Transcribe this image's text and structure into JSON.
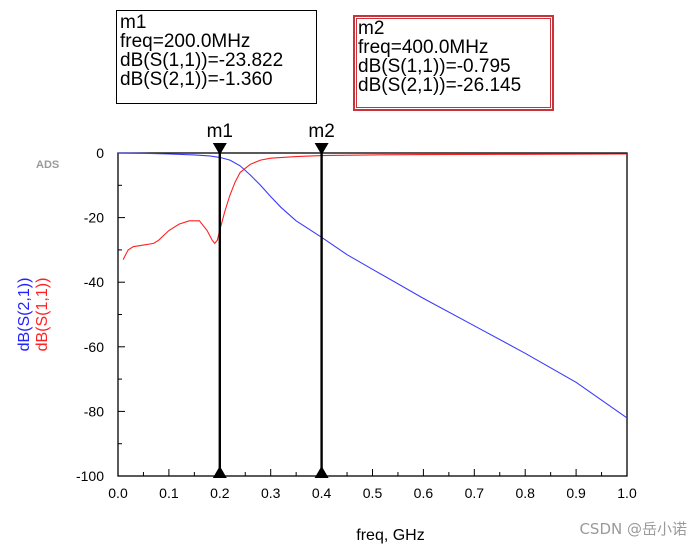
{
  "chart_data": {
    "type": "line",
    "app_label": "ADS",
    "xlabel": "freq, GHz",
    "ylabels": [
      {
        "text": "dB(S(2,1))",
        "color": "#2222ff"
      },
      {
        "text": "dB(S(1,1))",
        "color": "#ff2222"
      }
    ],
    "xlim": [
      0.0,
      1.0
    ],
    "ylim": [
      -100,
      0
    ],
    "xticks": [
      "0.0",
      "0.1",
      "0.2",
      "0.3",
      "0.4",
      "0.5",
      "0.6",
      "0.7",
      "0.8",
      "0.9",
      "1.0"
    ],
    "yticks": [
      "0",
      "-20",
      "-40",
      "-60",
      "-80",
      "-100"
    ],
    "series": [
      {
        "name": "dB(S(2,1))",
        "color": "#3a3aff",
        "x": [
          0.0,
          0.05,
          0.1,
          0.15,
          0.18,
          0.2,
          0.22,
          0.24,
          0.26,
          0.28,
          0.3,
          0.32,
          0.35,
          0.4,
          0.45,
          0.5,
          0.6,
          0.7,
          0.8,
          0.9,
          1.0
        ],
        "y": [
          0.0,
          -0.1,
          -0.3,
          -0.6,
          -0.9,
          -1.36,
          -2.2,
          -4.0,
          -6.8,
          -10.0,
          -13.5,
          -16.8,
          -21.0,
          -26.1,
          -31.5,
          -36.0,
          -45.0,
          -53.5,
          -62.0,
          -71.0,
          -82.0
        ]
      },
      {
        "name": "dB(S(1,1))",
        "color": "#ff2020",
        "x": [
          0.01,
          0.015,
          0.02,
          0.03,
          0.05,
          0.07,
          0.08,
          0.1,
          0.12,
          0.14,
          0.16,
          0.175,
          0.185,
          0.19,
          0.195,
          0.2,
          0.205,
          0.21,
          0.22,
          0.23,
          0.24,
          0.26,
          0.28,
          0.3,
          0.35,
          0.4,
          0.5,
          0.6,
          0.8,
          1.0
        ],
        "y": [
          -33.0,
          -31.5,
          -30.0,
          -29.0,
          -28.5,
          -28.0,
          -27.0,
          -24.0,
          -22.0,
          -21.0,
          -21.0,
          -24.0,
          -27.0,
          -28.0,
          -27.0,
          -23.8,
          -21.0,
          -18.0,
          -13.0,
          -9.0,
          -6.0,
          -3.5,
          -2.2,
          -1.6,
          -1.1,
          -0.8,
          -0.6,
          -0.5,
          -0.4,
          -0.3
        ]
      }
    ],
    "markers": [
      {
        "name": "m1",
        "x": 0.2
      },
      {
        "name": "m2",
        "x": 0.4
      }
    ]
  },
  "marker_boxes": {
    "m1": {
      "title": "m1",
      "freq": "freq=200.0MHz",
      "s11": "dB(S(1,1))=-23.822",
      "s21": "dB(S(2,1))=-1.360"
    },
    "m2": {
      "title": "m2",
      "freq": "freq=400.0MHz",
      "s11": "dB(S(1,1))=-0.795",
      "s21": "dB(S(2,1))=-26.145"
    }
  },
  "watermark": "CSDN @岳小诺"
}
